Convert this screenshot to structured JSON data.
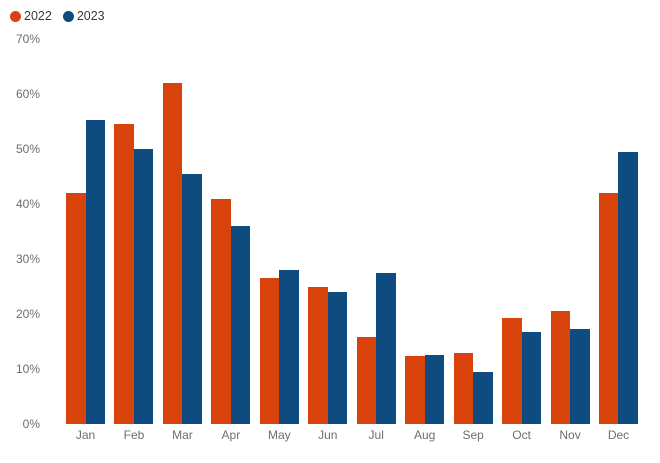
{
  "chart_data": {
    "type": "bar",
    "title": "",
    "categories": [
      "Jan",
      "Feb",
      "Mar",
      "Apr",
      "May",
      "Jun",
      "Jul",
      "Aug",
      "Sep",
      "Oct",
      "Nov",
      "Dec"
    ],
    "series": [
      {
        "name": "2022",
        "color": "#D7430B",
        "values": [
          42,
          54.5,
          62,
          41,
          26.5,
          25,
          15.8,
          12.4,
          13,
          19.2,
          20.5,
          42
        ]
      },
      {
        "name": "2023",
        "color": "#0E4B7F",
        "values": [
          55.3,
          50,
          45.4,
          36,
          28,
          24,
          27.4,
          12.6,
          9.5,
          16.8,
          17.2,
          49.5
        ]
      }
    ],
    "xlabel": "",
    "ylabel": "",
    "ylim": [
      0,
      70
    ],
    "ytick_step": 10,
    "ytick_suffix": "%",
    "grid": false,
    "legend_position": "top-left",
    "colors": {
      "background": "#FFFFFF",
      "axis_label_text": "#6E6E6E",
      "legend_text": "#3A3A3A"
    }
  }
}
